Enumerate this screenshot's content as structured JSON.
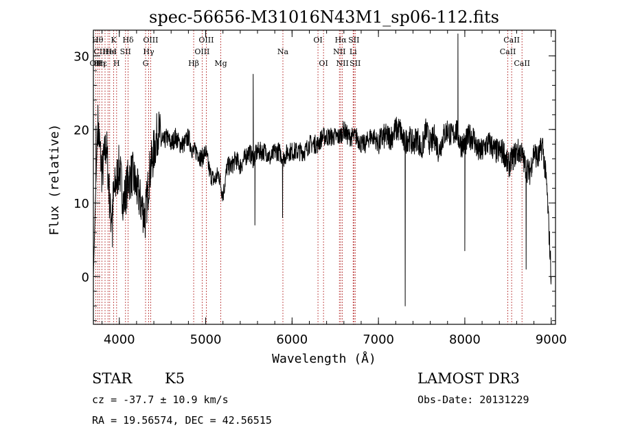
{
  "chart_data": {
    "type": "line",
    "title": "spec-56656-M31016N43M1_sp06-112.fits",
    "xlabel": "Wavelength (Å)",
    "ylabel": "Flux (relative)",
    "xlim": [
      3700,
      9050
    ],
    "ylim": [
      -6.5,
      33.5
    ],
    "xticks": [
      4000,
      5000,
      6000,
      7000,
      8000,
      9000
    ],
    "yticks": [
      0,
      10,
      20,
      30
    ],
    "x": [
      3700,
      3750,
      3800,
      3850,
      3900,
      3950,
      4000,
      4050,
      4100,
      4150,
      4200,
      4250,
      4300,
      4350,
      4400,
      4450,
      4500,
      4550,
      4600,
      4650,
      4700,
      4750,
      4800,
      4850,
      4900,
      4950,
      5000,
      5050,
      5100,
      5150,
      5200,
      5250,
      5300,
      5350,
      5400,
      5450,
      5500,
      5550,
      5600,
      5650,
      5700,
      5750,
      5800,
      5850,
      5900,
      5950,
      6000,
      6050,
      6100,
      6150,
      6200,
      6250,
      6300,
      6350,
      6400,
      6450,
      6500,
      6550,
      6600,
      6650,
      6700,
      6750,
      6800,
      6850,
      6900,
      6950,
      7000,
      7050,
      7100,
      7150,
      7200,
      7250,
      7300,
      7350,
      7400,
      7450,
      7500,
      7550,
      7600,
      7650,
      7700,
      7750,
      7800,
      7850,
      7900,
      7950,
      8000,
      8050,
      8100,
      8150,
      8200,
      8250,
      8300,
      8350,
      8400,
      8450,
      8500,
      8550,
      8600,
      8650,
      8700,
      8750,
      8800,
      8850,
      8900,
      8950,
      9000
    ],
    "y": [
      0,
      21,
      14,
      18,
      8,
      12,
      15,
      10,
      13,
      14,
      12,
      10,
      8,
      14,
      17,
      20,
      18,
      19,
      18,
      19,
      18,
      18,
      19,
      17,
      17,
      16,
      17,
      14,
      13,
      14,
      11,
      15,
      15,
      16,
      15,
      16,
      17,
      16,
      17,
      17,
      17,
      16,
      17,
      17,
      16,
      17,
      17,
      17,
      17,
      17,
      18,
      18,
      18,
      19,
      19,
      19,
      19,
      19,
      20,
      19,
      19,
      19,
      18,
      18,
      19,
      19,
      18,
      19,
      19,
      19,
      20,
      20,
      18,
      19,
      18,
      19,
      17,
      20,
      18,
      19,
      17,
      19,
      20,
      19,
      20,
      18,
      18,
      19,
      19,
      17,
      17,
      18,
      18,
      17,
      17,
      17,
      15,
      16,
      17,
      17,
      15,
      14,
      17,
      16,
      18,
      12,
      0
    ],
    "features": [
      {
        "x": 7310,
        "y": -4
      },
      {
        "x": 5570,
        "y": 7
      },
      {
        "x": 5890,
        "y": 8
      },
      {
        "x": 8000,
        "y": 3.5
      },
      {
        "x": 8710,
        "y": 1
      },
      {
        "x": 7920,
        "y": 33
      },
      {
        "x": 5550,
        "y": 27.5
      },
      {
        "x": 3730,
        "y": 20.5
      },
      {
        "x": 3920,
        "y": 4
      }
    ],
    "lines": [
      {
        "x": 3727,
        "label": "OII",
        "row": 2
      },
      {
        "x": 3750,
        "label": "Hθ",
        "row": 0
      },
      {
        "x": 3771,
        "label": "Hη",
        "row": 2
      },
      {
        "x": 3798,
        "label": "Hε",
        "row": 2
      },
      {
        "x": 3835,
        "label": "CIIHe",
        "row": 1
      },
      {
        "x": 3869,
        "label": "",
        "row": 1
      },
      {
        "x": 3889,
        "label": "HeI",
        "row": 1
      },
      {
        "x": 3934,
        "label": "K",
        "row": 0
      },
      {
        "x": 3969,
        "label": "H",
        "row": 2
      },
      {
        "x": 4072,
        "label": "SII",
        "row": 1
      },
      {
        "x": 4102,
        "label": "Hδ",
        "row": 0
      },
      {
        "x": 4304,
        "label": "G",
        "row": 2
      },
      {
        "x": 4340,
        "label": "Hγ",
        "row": 1
      },
      {
        "x": 4363,
        "label": "OIII",
        "row": 0
      },
      {
        "x": 4861,
        "label": "Hβ",
        "row": 2
      },
      {
        "x": 4959,
        "label": "OIII",
        "row": 1
      },
      {
        "x": 5007,
        "label": "OIII",
        "row": 0
      },
      {
        "x": 5175,
        "label": "Mg",
        "row": 2
      },
      {
        "x": 5894,
        "label": "Na",
        "row": 1
      },
      {
        "x": 6300,
        "label": "OI",
        "row": 0
      },
      {
        "x": 6364,
        "label": "OI",
        "row": 2
      },
      {
        "x": 6548,
        "label": "NII",
        "row": 1
      },
      {
        "x": 6563,
        "label": "Hα",
        "row": 0
      },
      {
        "x": 6583,
        "label": "NII",
        "row": 2
      },
      {
        "x": 6707,
        "label": "Li",
        "row": 1
      },
      {
        "x": 6716,
        "label": "SII",
        "row": 0
      },
      {
        "x": 6731,
        "label": "SII",
        "row": 2
      },
      {
        "x": 8498,
        "label": "CaII",
        "row": 1
      },
      {
        "x": 8542,
        "label": "CaII",
        "row": 0
      },
      {
        "x": 8662,
        "label": "CaII",
        "row": 2
      }
    ]
  },
  "info": {
    "class": "STAR",
    "subclass": "K5",
    "cz": "cz = -37.7 ± 10.9 km/s",
    "radec": "RA =  19.56574, DEC =  42.56515",
    "survey": "LAMOST DR3",
    "obsdate": "Obs-Date: 20131229"
  }
}
